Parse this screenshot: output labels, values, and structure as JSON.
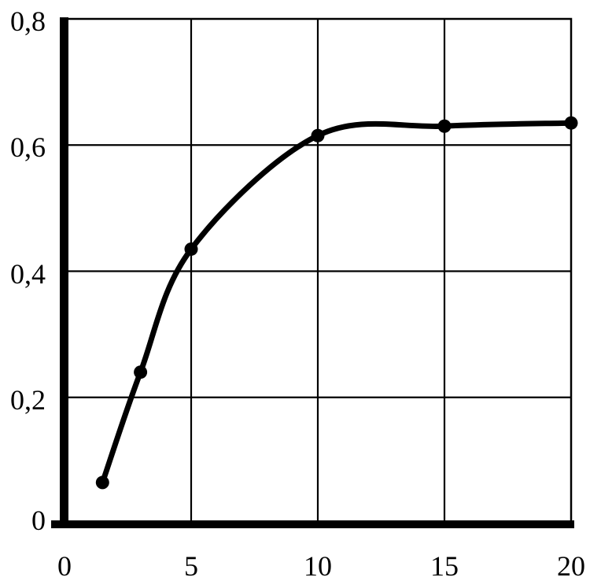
{
  "figure": {
    "background": "#ffffff",
    "frame_color": "#000000"
  },
  "chart_data": {
    "type": "line",
    "title": "",
    "xlabel": "",
    "ylabel": "",
    "x": [
      1.5,
      3,
      5,
      10,
      15,
      20
    ],
    "y": [
      0.065,
      0.24,
      0.435,
      0.615,
      0.63,
      0.635
    ],
    "xlim": [
      0,
      20
    ],
    "ylim": [
      0,
      0.8
    ],
    "x_ticks": [
      0,
      5,
      10,
      15,
      20
    ],
    "x_tick_labels": [
      "0",
      "5",
      "10",
      "15",
      "20"
    ],
    "y_ticks": [
      0,
      0.2,
      0.4,
      0.6,
      0.8
    ],
    "y_tick_labels": [
      "0",
      "0,2",
      "0,4",
      "0,6",
      "0,8"
    ],
    "decimal_separator": ",",
    "grid": true,
    "legend": "none",
    "line_color": "#000000",
    "line_style": "solid-smooth",
    "marker": "filled-circle",
    "marker_color": "#000000",
    "axis_style": "thick-left-bottom-thin-frame"
  }
}
